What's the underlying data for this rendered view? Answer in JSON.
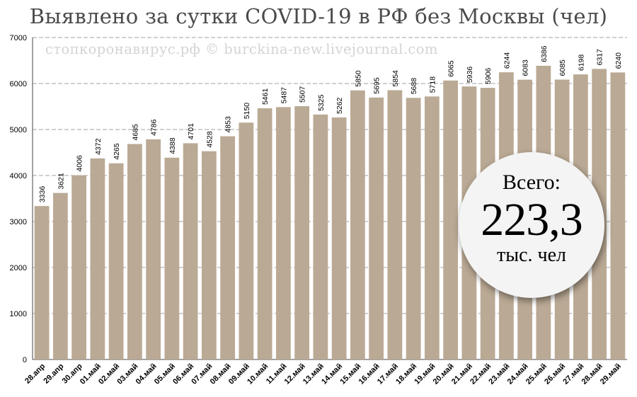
{
  "chart_data": {
    "type": "bar",
    "title": "Выявлено за сутки COVID-19 в РФ без Москвы (чел)",
    "categories": [
      "28.апр",
      "29.апр",
      "30.апр",
      "01.май",
      "02.май",
      "03.май",
      "04.май",
      "05.май",
      "06.май",
      "07.май",
      "08.май",
      "09.май",
      "10.май",
      "11.май",
      "12.май",
      "13.май",
      "14.май",
      "15.май",
      "16.май",
      "17.май",
      "18.май",
      "19.май",
      "20.май",
      "21.май",
      "22.май",
      "23.май",
      "24.май",
      "25.май",
      "26.май",
      "27.май",
      "28.май",
      "29.май"
    ],
    "values": [
      3336,
      3621,
      4006,
      4372,
      4265,
      4685,
      4786,
      4388,
      4701,
      4528,
      4853,
      5150,
      5461,
      5487,
      5507,
      5325,
      5262,
      5850,
      5695,
      5854,
      5688,
      5718,
      6065,
      5936,
      5906,
      6244,
      6083,
      6386,
      6085,
      6198,
      6317,
      6240
    ],
    "ylim": [
      0,
      7000
    ],
    "yticks": [
      0,
      1000,
      2000,
      3000,
      4000,
      5000,
      6000,
      7000
    ],
    "grid": true,
    "bar_color": "#baa994",
    "watermark": "стопкоронавирус.рф © burckina-new.livejournal.com",
    "total": {
      "label": "Всего:",
      "value": "223,3",
      "unit": "тыс. чел"
    }
  }
}
